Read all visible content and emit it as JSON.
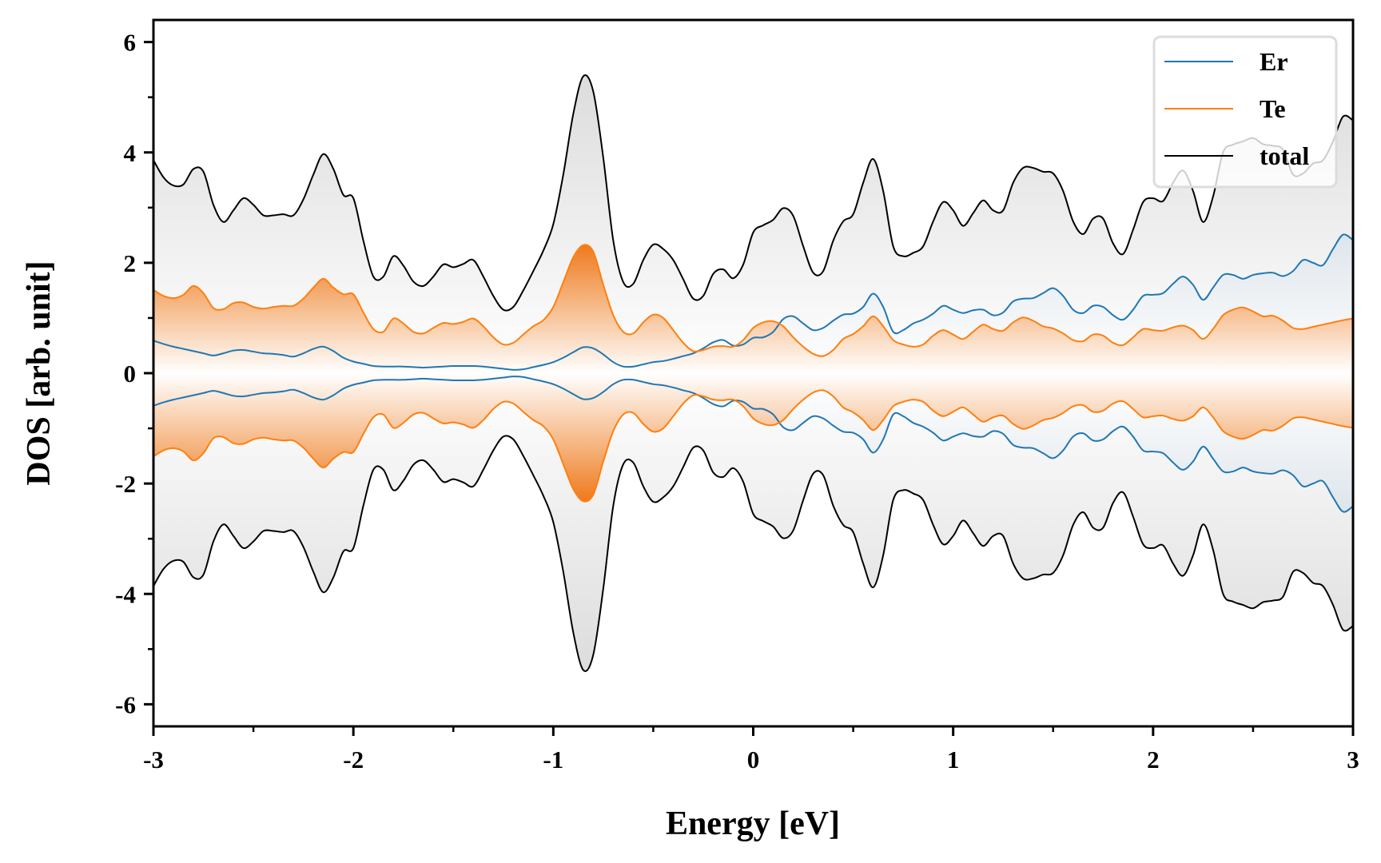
{
  "chart_data": {
    "type": "area",
    "title": "",
    "xlabel": "Energy [eV]",
    "ylabel": "DOS [arb. unit]",
    "xlim": [
      -3,
      3
    ],
    "ylim": [
      -6.4,
      6.4
    ],
    "xticks": [
      -3,
      -2,
      -1,
      0,
      1,
      2,
      3
    ],
    "xtick_labels": [
      "-3",
      "-2",
      "-1",
      "0",
      "1",
      "2",
      "3"
    ],
    "xminor_step": 0.5,
    "yticks": [
      -6,
      -4,
      -2,
      0,
      2,
      4,
      6
    ],
    "ytick_labels": [
      "-6",
      "-4",
      "-2",
      "0",
      "2",
      "4",
      "6"
    ],
    "yminor_step": 1,
    "grid": false,
    "legend": {
      "position": "top-right",
      "entries": [
        "Er",
        "Te",
        "total"
      ]
    },
    "mirrored_about_zero": true,
    "x": [
      -3.0,
      -2.95,
      -2.9,
      -2.85,
      -2.8,
      -2.75,
      -2.7,
      -2.65,
      -2.6,
      -2.55,
      -2.5,
      -2.45,
      -2.4,
      -2.35,
      -2.3,
      -2.25,
      -2.2,
      -2.15,
      -2.1,
      -2.05,
      -2.0,
      -1.95,
      -1.9,
      -1.85,
      -1.8,
      -1.75,
      -1.7,
      -1.65,
      -1.6,
      -1.55,
      -1.5,
      -1.45,
      -1.4,
      -1.35,
      -1.3,
      -1.25,
      -1.2,
      -1.15,
      -1.1,
      -1.05,
      -1.0,
      -0.95,
      -0.9,
      -0.85,
      -0.8,
      -0.75,
      -0.7,
      -0.65,
      -0.6,
      -0.55,
      -0.5,
      -0.45,
      -0.4,
      -0.35,
      -0.3,
      -0.25,
      -0.2,
      -0.15,
      -0.1,
      -0.05,
      0.0,
      0.05,
      0.1,
      0.15,
      0.2,
      0.25,
      0.3,
      0.35,
      0.4,
      0.45,
      0.5,
      0.55,
      0.6,
      0.65,
      0.7,
      0.75,
      0.8,
      0.85,
      0.9,
      0.95,
      1.0,
      1.05,
      1.1,
      1.15,
      1.2,
      1.25,
      1.3,
      1.35,
      1.4,
      1.45,
      1.5,
      1.55,
      1.6,
      1.65,
      1.7,
      1.75,
      1.8,
      1.85,
      1.9,
      1.95,
      2.0,
      2.05,
      2.1,
      2.15,
      2.2,
      2.25,
      2.3,
      2.35,
      2.4,
      2.45,
      2.5,
      2.55,
      2.6,
      2.65,
      2.7,
      2.75,
      2.8,
      2.85,
      2.9,
      2.95,
      3.0
    ],
    "series": [
      {
        "name": "total",
        "color": "#000000",
        "fill": "gray-gradient",
        "values": [
          3.86,
          3.55,
          3.4,
          3.42,
          3.7,
          3.65,
          3.05,
          2.74,
          2.95,
          3.17,
          3.05,
          2.86,
          2.86,
          2.88,
          2.86,
          3.15,
          3.6,
          3.97,
          3.7,
          3.23,
          3.17,
          2.4,
          1.75,
          1.75,
          2.12,
          1.95,
          1.66,
          1.58,
          1.75,
          1.97,
          1.92,
          1.98,
          2.05,
          1.75,
          1.4,
          1.15,
          1.2,
          1.5,
          1.85,
          2.22,
          2.7,
          3.6,
          4.7,
          5.38,
          5.1,
          3.9,
          2.4,
          1.65,
          1.62,
          2.05,
          2.33,
          2.25,
          2.05,
          1.7,
          1.35,
          1.4,
          1.8,
          1.88,
          1.72,
          1.97,
          2.55,
          2.68,
          2.78,
          2.99,
          2.85,
          2.3,
          1.82,
          1.85,
          2.4,
          2.75,
          2.88,
          3.45,
          3.88,
          3.3,
          2.3,
          2.12,
          2.18,
          2.3,
          2.75,
          3.1,
          2.95,
          2.67,
          2.9,
          3.13,
          2.95,
          2.95,
          3.45,
          3.72,
          3.72,
          3.65,
          3.62,
          3.3,
          2.75,
          2.52,
          2.8,
          2.8,
          2.35,
          2.16,
          2.6,
          3.1,
          3.17,
          3.12,
          3.45,
          3.67,
          3.3,
          2.74,
          3.2,
          4.0,
          4.14,
          4.2,
          4.26,
          4.15,
          4.12,
          4.05,
          3.6,
          3.62,
          3.8,
          3.86,
          4.2,
          4.65,
          4.58
        ]
      },
      {
        "name": "Er",
        "color": "#1f77b4",
        "fill": "blue-gray",
        "values": [
          0.59,
          0.53,
          0.48,
          0.44,
          0.4,
          0.36,
          0.32,
          0.36,
          0.41,
          0.42,
          0.39,
          0.36,
          0.35,
          0.33,
          0.3,
          0.36,
          0.44,
          0.48,
          0.4,
          0.28,
          0.21,
          0.17,
          0.13,
          0.12,
          0.12,
          0.12,
          0.11,
          0.1,
          0.11,
          0.12,
          0.13,
          0.13,
          0.13,
          0.12,
          0.1,
          0.08,
          0.06,
          0.07,
          0.11,
          0.15,
          0.2,
          0.28,
          0.38,
          0.47,
          0.45,
          0.34,
          0.2,
          0.12,
          0.12,
          0.16,
          0.2,
          0.22,
          0.26,
          0.31,
          0.36,
          0.45,
          0.56,
          0.6,
          0.5,
          0.52,
          0.64,
          0.65,
          0.75,
          0.98,
          1.03,
          0.9,
          0.78,
          0.82,
          0.95,
          1.06,
          1.08,
          1.2,
          1.44,
          1.2,
          0.75,
          0.78,
          0.9,
          0.97,
          1.08,
          1.22,
          1.15,
          1.09,
          1.14,
          1.15,
          1.05,
          1.1,
          1.3,
          1.35,
          1.36,
          1.45,
          1.54,
          1.4,
          1.15,
          1.09,
          1.22,
          1.2,
          1.05,
          0.97,
          1.15,
          1.4,
          1.42,
          1.45,
          1.62,
          1.75,
          1.6,
          1.33,
          1.55,
          1.78,
          1.78,
          1.71,
          1.78,
          1.81,
          1.82,
          1.76,
          1.85,
          2.05,
          2.0,
          1.96,
          2.25,
          2.51,
          2.41
        ]
      },
      {
        "name": "Te",
        "color": "#ff7f0e",
        "fill": "orange-gradient",
        "values": [
          1.51,
          1.4,
          1.36,
          1.42,
          1.58,
          1.45,
          1.18,
          1.16,
          1.27,
          1.28,
          1.2,
          1.17,
          1.2,
          1.22,
          1.22,
          1.35,
          1.55,
          1.71,
          1.55,
          1.43,
          1.43,
          1.1,
          0.8,
          0.75,
          0.99,
          0.9,
          0.75,
          0.72,
          0.82,
          0.91,
          0.89,
          0.93,
          0.99,
          0.85,
          0.65,
          0.52,
          0.55,
          0.7,
          0.85,
          0.96,
          1.2,
          1.65,
          2.1,
          2.32,
          2.2,
          1.6,
          1.05,
          0.75,
          0.72,
          0.92,
          1.06,
          1.0,
          0.78,
          0.55,
          0.4,
          0.42,
          0.48,
          0.49,
          0.48,
          0.6,
          0.82,
          0.92,
          0.94,
          0.85,
          0.65,
          0.48,
          0.35,
          0.31,
          0.42,
          0.62,
          0.71,
          0.85,
          1.03,
          0.85,
          0.6,
          0.52,
          0.48,
          0.52,
          0.68,
          0.78,
          0.7,
          0.62,
          0.75,
          0.88,
          0.8,
          0.77,
          0.92,
          1.01,
          0.95,
          0.85,
          0.81,
          0.72,
          0.6,
          0.58,
          0.7,
          0.68,
          0.55,
          0.51,
          0.65,
          0.8,
          0.78,
          0.77,
          0.83,
          0.86,
          0.78,
          0.62,
          0.8,
          1.05,
          1.15,
          1.19,
          1.12,
          1.03,
          1.04,
          0.95,
          0.82,
          0.8,
          0.84,
          0.88,
          0.92,
          0.96,
          0.99
        ]
      }
    ]
  }
}
